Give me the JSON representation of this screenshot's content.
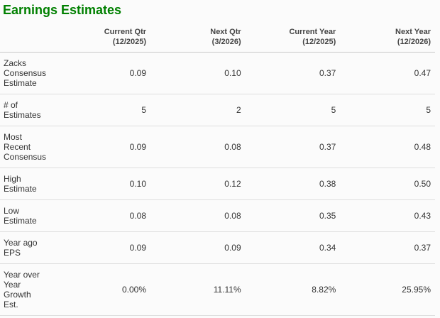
{
  "title": "Earnings Estimates",
  "colors": {
    "accent_green": "#008000",
    "header_text": "#444444",
    "body_text": "#333333",
    "row_divider": "#dedede",
    "header_divider": "#c9c9c9",
    "background": "#fbfbfb"
  },
  "table": {
    "columns": [
      {
        "label": "Current Qtr",
        "sub": "(12/2025)"
      },
      {
        "label": "Next Qtr",
        "sub": "(3/2026)"
      },
      {
        "label": "Current Year",
        "sub": "(12/2025)"
      },
      {
        "label": "Next Year",
        "sub": "(12/2026)"
      }
    ],
    "rows": [
      {
        "label": "Zacks\nConsensus\nEstimate",
        "values": [
          "0.09",
          "0.10",
          "0.37",
          "0.47"
        ]
      },
      {
        "label": "# of\nEstimates",
        "values": [
          "5",
          "2",
          "5",
          "5"
        ]
      },
      {
        "label": "Most\nRecent\nConsensus",
        "values": [
          "0.09",
          "0.08",
          "0.37",
          "0.48"
        ]
      },
      {
        "label": "High\nEstimate",
        "values": [
          "0.10",
          "0.12",
          "0.38",
          "0.50"
        ]
      },
      {
        "label": "Low\nEstimate",
        "values": [
          "0.08",
          "0.08",
          "0.35",
          "0.43"
        ]
      },
      {
        "label": "Year ago\nEPS",
        "values": [
          "0.09",
          "0.09",
          "0.34",
          "0.37"
        ]
      },
      {
        "label": "Year over\nYear\nGrowth\nEst.",
        "values": [
          "0.00%",
          "11.11%",
          "8.82%",
          "25.95%"
        ]
      }
    ]
  }
}
